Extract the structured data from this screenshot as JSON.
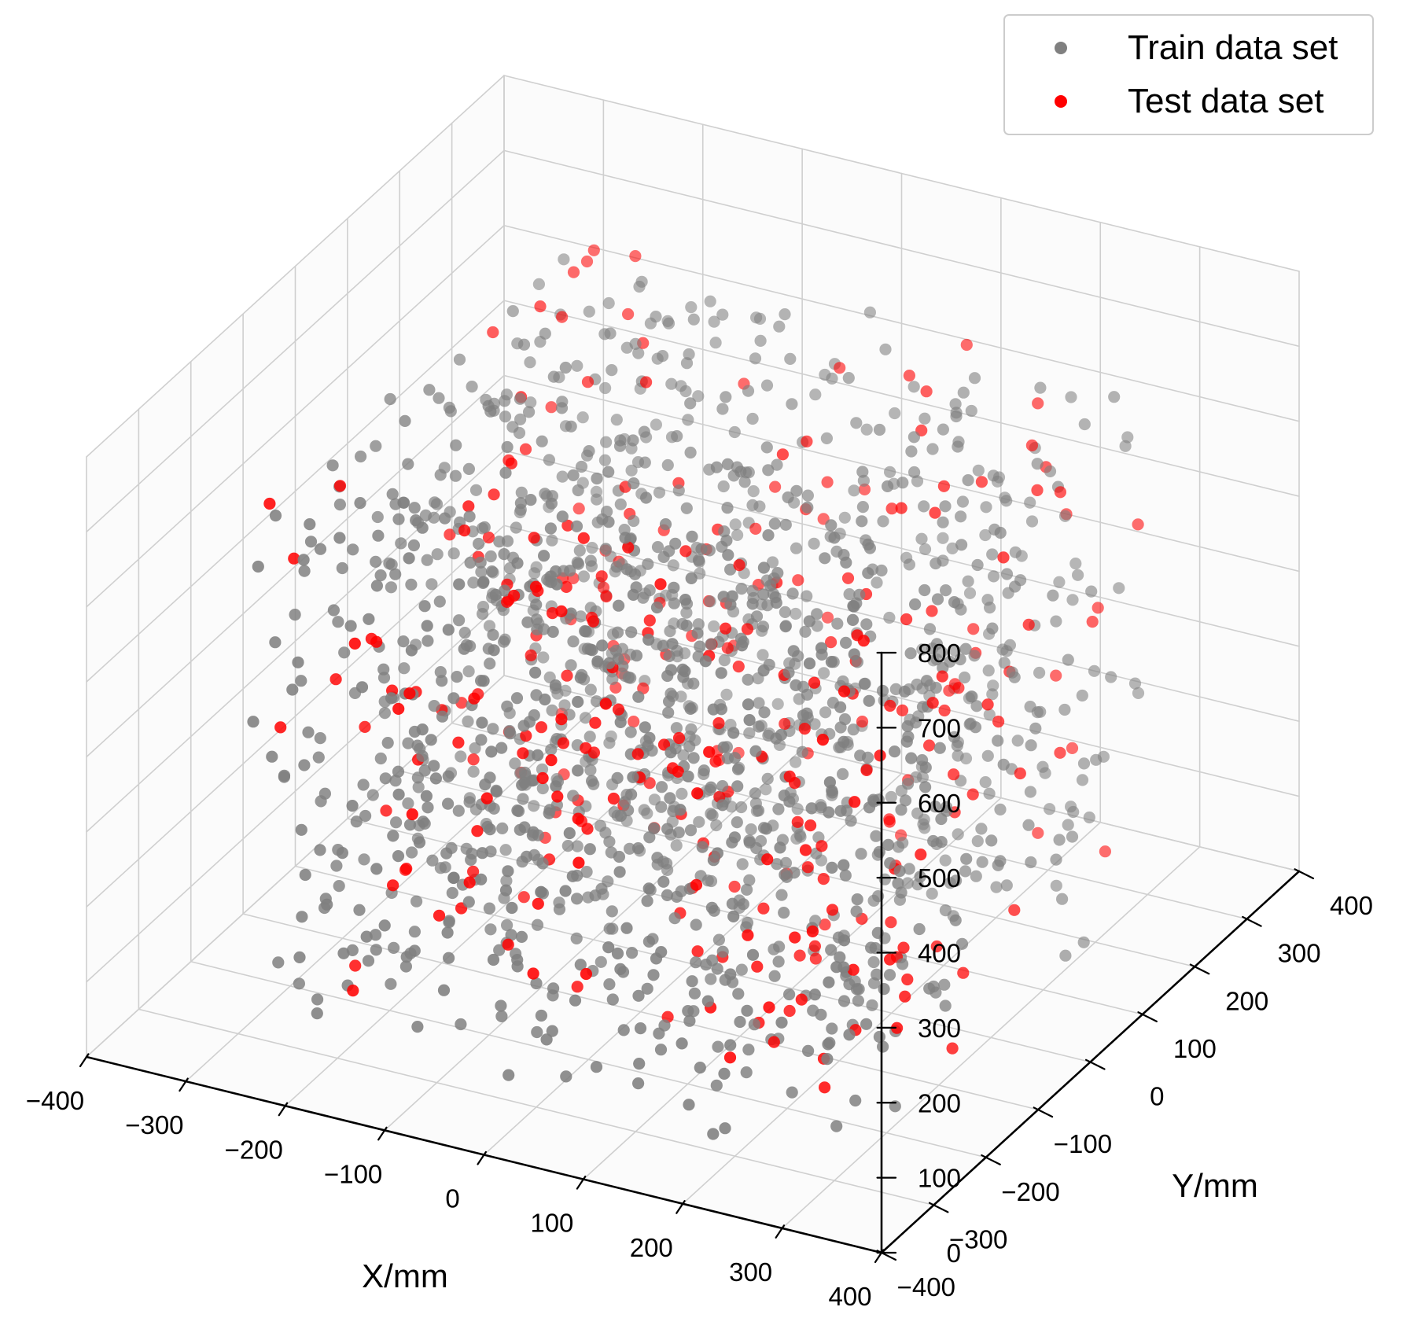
{
  "chart_data": {
    "type": "scatter",
    "projection": "3d",
    "title": "",
    "xlabel": "X/mm",
    "ylabel": "Y/mm",
    "zlabel": "",
    "xlim": [
      -400,
      400
    ],
    "ylim": [
      -400,
      400
    ],
    "zlim": [
      0,
      800
    ],
    "x_ticks": [
      -400,
      -300,
      -200,
      -100,
      0,
      100,
      200,
      300,
      400
    ],
    "y_ticks": [
      -400,
      -300,
      -200,
      -100,
      0,
      100,
      200,
      300,
      400
    ],
    "z_ticks": [
      0,
      100,
      200,
      300,
      400,
      500,
      600,
      700,
      800
    ],
    "x_tick_labels": [
      "−400",
      "−300",
      "−200",
      "−100",
      "0",
      "100",
      "200",
      "300",
      "400"
    ],
    "y_tick_labels": [
      "−400",
      "−300",
      "−200",
      "−100",
      "0",
      "100",
      "200",
      "300",
      "400"
    ],
    "z_tick_labels": [
      "0",
      "100",
      "200",
      "300",
      "400",
      "500",
      "600",
      "700",
      "800"
    ],
    "grid": true,
    "legend_position": "top-right",
    "point_distribution": "points scattered roughly uniformly over x −300…300 mm, y −300…300 mm, z 0…700 mm; about 1500 training points and 300 test points",
    "series": [
      {
        "name": "Train data set",
        "color": "#808080",
        "count": 1500,
        "x_range": [
          -300,
          300
        ],
        "y_range": [
          -300,
          300
        ],
        "z_range": [
          0,
          700
        ]
      },
      {
        "name": "Test data set",
        "color": "#ff0000",
        "count": 300,
        "x_range": [
          -300,
          300
        ],
        "y_range": [
          -300,
          300
        ],
        "z_range": [
          0,
          700
        ]
      }
    ]
  }
}
